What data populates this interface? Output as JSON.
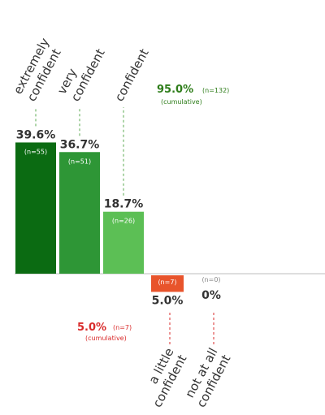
{
  "chart_data": {
    "type": "bar",
    "diverging": true,
    "categories": [
      "extremely confident",
      "very confident",
      "confident",
      "a little confident",
      "not at all confident"
    ],
    "series": [
      {
        "values": [
          39.6,
          36.7,
          18.7,
          -5.0,
          0.0
        ]
      }
    ],
    "category_lines": [
      [
        "extremely",
        "confident"
      ],
      [
        "very",
        "confident"
      ],
      [
        "confident"
      ],
      [
        "a little",
        "confident"
      ],
      [
        "not at all",
        "confident"
      ]
    ],
    "value_labels": [
      "39.6%",
      "36.7%",
      "18.7%",
      "5.0%",
      "0%"
    ],
    "n_labels": [
      "(n=55)",
      "(n=51)",
      "(n=26)",
      "(n=7)",
      "(n=0)"
    ],
    "bar_colors": [
      "#0b6b12",
      "#2e9636",
      "#5cbf55",
      "#e8542c",
      "#e8542c"
    ],
    "positive_summary": {
      "value": "95.0%",
      "n": "(n=132)",
      "note": "(cumulative)",
      "color": "#2e7d1a"
    },
    "negative_summary": {
      "value": "5.0%",
      "n": "(n=7)",
      "note": "(cumulative)",
      "color": "#d92b2b"
    },
    "grid": false,
    "legend": "none"
  }
}
